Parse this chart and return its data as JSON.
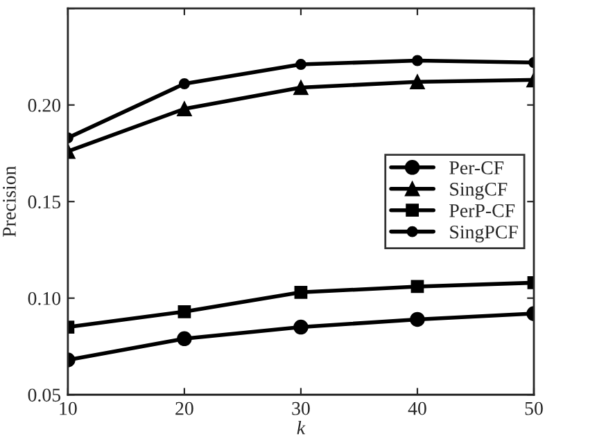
{
  "chart_data": {
    "type": "line",
    "xlabel": "k",
    "ylabel": "Precision",
    "x": [
      10,
      20,
      30,
      40,
      50
    ],
    "series": [
      {
        "name": "Per-CF",
        "color": "#000000",
        "marker": "circle",
        "values": [
          0.068,
          0.079,
          0.085,
          0.089,
          0.092
        ]
      },
      {
        "name": "SingCF",
        "color": "#000000",
        "marker": "triangle",
        "values": [
          0.176,
          0.198,
          0.209,
          0.212,
          0.213
        ]
      },
      {
        "name": "PerP-CF",
        "color": "#000000",
        "marker": "square",
        "values": [
          0.085,
          0.093,
          0.103,
          0.106,
          0.108
        ]
      },
      {
        "name": "SingPCF",
        "color": "#000000",
        "marker": "dot",
        "values": [
          0.183,
          0.211,
          0.221,
          0.223,
          0.222
        ]
      }
    ],
    "xlim": [
      10,
      50
    ],
    "xticks": [
      10,
      20,
      30,
      40,
      50
    ],
    "ylim": [
      0.05,
      0.25
    ],
    "yticks": [
      {
        "value": 0.05,
        "label": "0.05"
      },
      {
        "value": 0.1,
        "label": "0.10"
      },
      {
        "value": 0.15,
        "label": "0.15"
      },
      {
        "value": 0.2,
        "label": "0.20"
      },
      {
        "value": 0.25,
        "label": null
      }
    ],
    "grid": false,
    "legend": "center right",
    "line_style": "solid"
  }
}
